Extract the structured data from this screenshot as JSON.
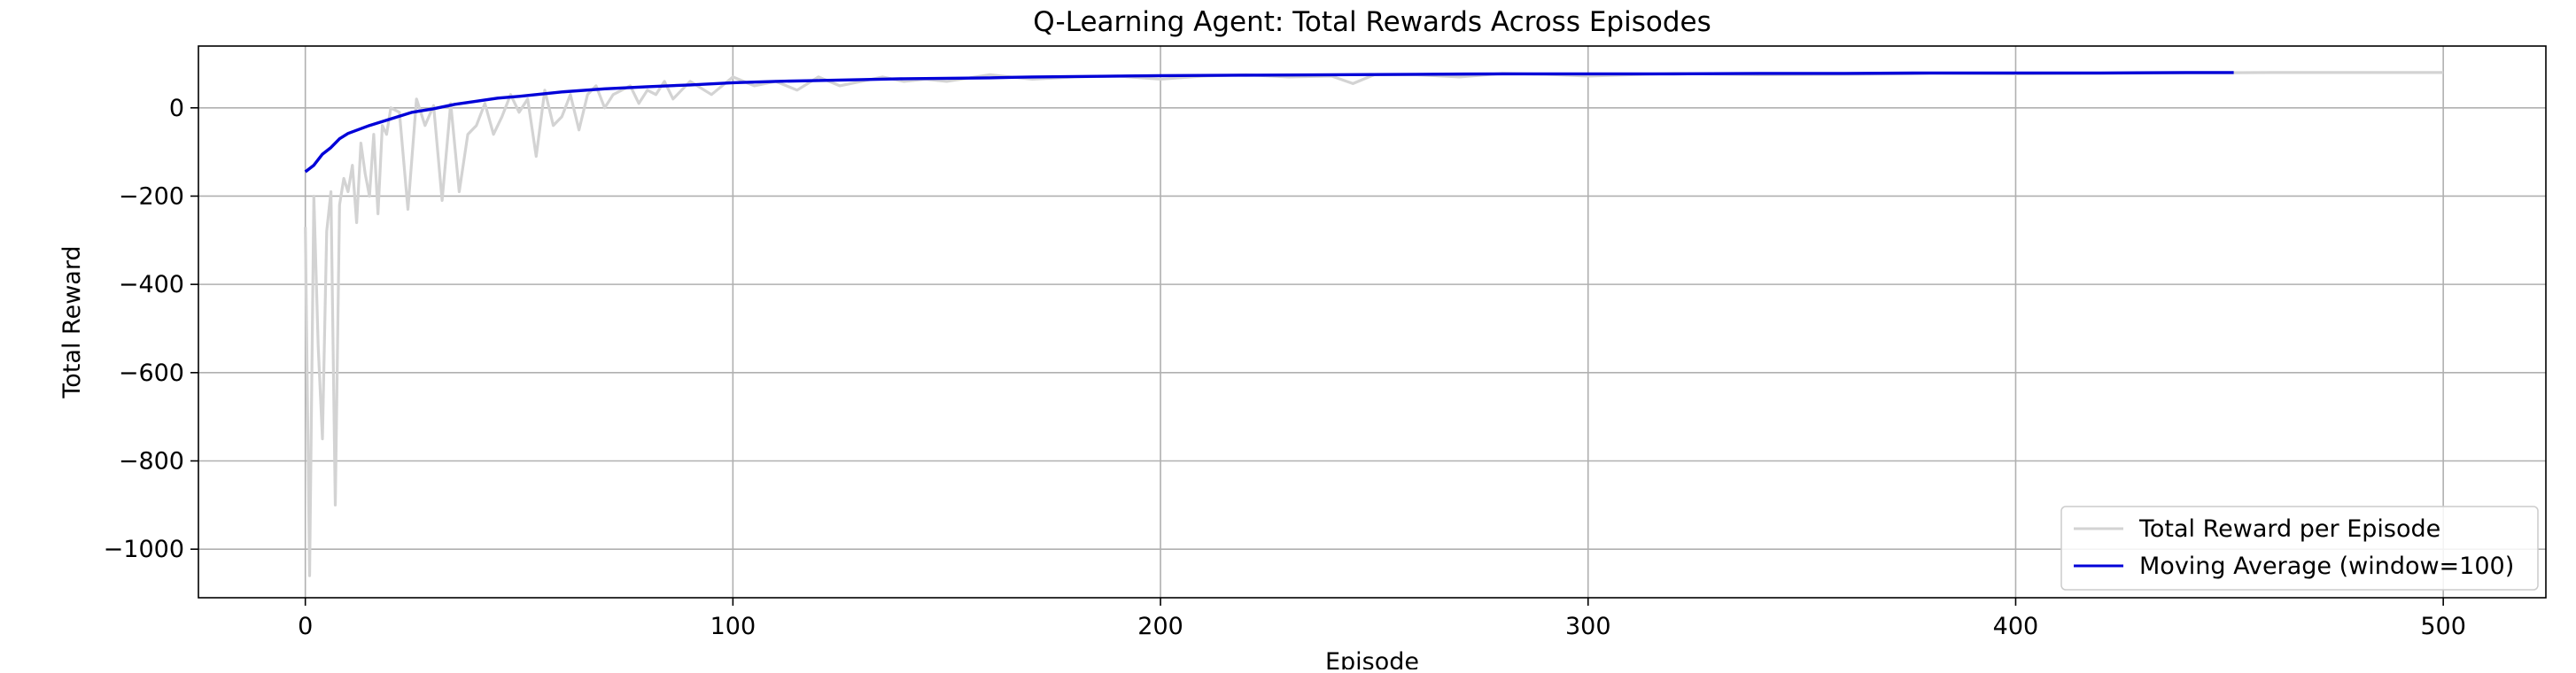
{
  "chart_data": {
    "type": "line",
    "title": "Q-Learning Agent: Total Rewards Across Episodes",
    "xlabel": "Episode",
    "ylabel": "Total Reward",
    "xlim": [
      -25,
      524
    ],
    "ylim": [
      -1110,
      140
    ],
    "xticks": [
      0,
      100,
      200,
      300,
      400,
      500
    ],
    "yticks": [
      -1000,
      -800,
      -600,
      -400,
      -200,
      0
    ],
    "grid": true,
    "legend_position": "lower-right",
    "series": [
      {
        "name": "Total Reward per Episode",
        "color": "#d3d3d3",
        "x": [
          0,
          1,
          2,
          3,
          4,
          5,
          6,
          7,
          8,
          9,
          10,
          11,
          12,
          13,
          14,
          15,
          16,
          17,
          18,
          19,
          20,
          22,
          24,
          26,
          28,
          30,
          32,
          34,
          36,
          38,
          40,
          42,
          44,
          46,
          48,
          50,
          52,
          54,
          56,
          58,
          60,
          62,
          64,
          66,
          68,
          70,
          72,
          74,
          76,
          78,
          80,
          82,
          84,
          86,
          88,
          90,
          95,
          100,
          105,
          110,
          115,
          120,
          125,
          130,
          135,
          140,
          145,
          150,
          160,
          170,
          180,
          190,
          200,
          210,
          220,
          230,
          240,
          245,
          250,
          260,
          270,
          280,
          290,
          300,
          320,
          340,
          360,
          380,
          400,
          420,
          440,
          460,
          480,
          500
        ],
        "y": [
          -270,
          -1060,
          -200,
          -540,
          -750,
          -280,
          -190,
          -900,
          -220,
          -160,
          -190,
          -130,
          -260,
          -80,
          -150,
          -200,
          -60,
          -240,
          -40,
          -60,
          0,
          -10,
          -230,
          20,
          -40,
          5,
          -210,
          10,
          -190,
          -60,
          -40,
          10,
          -60,
          -20,
          30,
          -10,
          20,
          -110,
          40,
          -40,
          -20,
          30,
          -50,
          30,
          50,
          0,
          30,
          40,
          50,
          10,
          40,
          30,
          60,
          20,
          40,
          60,
          30,
          70,
          50,
          60,
          40,
          70,
          50,
          60,
          70,
          60,
          65,
          60,
          75,
          65,
          70,
          72,
          65,
          72,
          75,
          70,
          72,
          55,
          75,
          75,
          70,
          78,
          76,
          72,
          78,
          75,
          76,
          78,
          77,
          78,
          79,
          80,
          80,
          80
        ]
      },
      {
        "name": "Moving Average (window=100)",
        "color": "#0000d8",
        "x": [
          0,
          2,
          4,
          6,
          8,
          10,
          15,
          20,
          25,
          30,
          35,
          40,
          45,
          50,
          60,
          70,
          80,
          90,
          100,
          110,
          120,
          130,
          140,
          150,
          160,
          170,
          180,
          190,
          200,
          220,
          240,
          260,
          280,
          300,
          320,
          340,
          360,
          380,
          400,
          420,
          440,
          451
        ],
        "y": [
          -145,
          -130,
          -105,
          -90,
          -70,
          -58,
          -40,
          -25,
          -10,
          -2,
          8,
          15,
          22,
          26,
          36,
          43,
          48,
          52,
          57,
          60,
          62,
          64,
          66,
          67,
          68,
          70,
          71,
          72,
          73,
          74,
          75,
          76,
          77,
          77,
          77,
          78,
          78,
          79,
          79,
          79,
          80,
          80
        ]
      }
    ]
  }
}
